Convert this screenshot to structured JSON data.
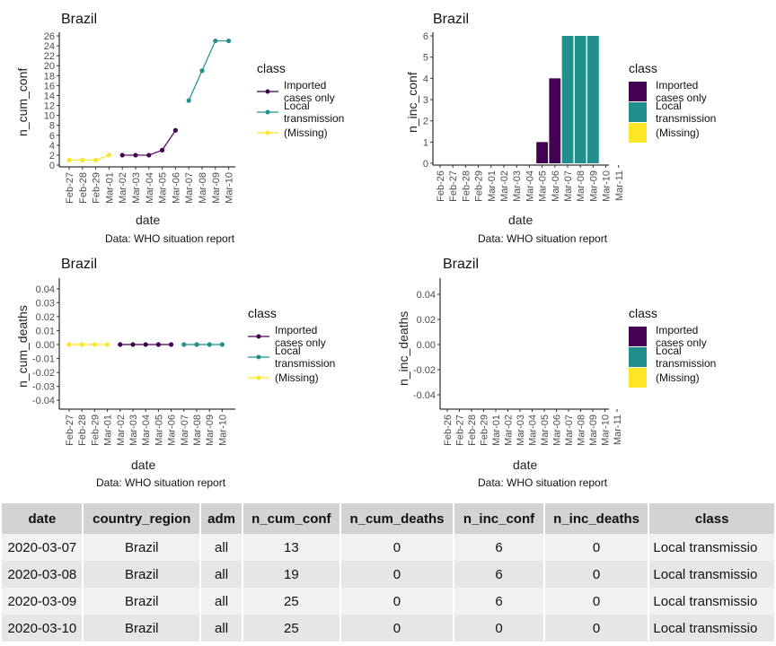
{
  "colors": {
    "imported": "#440154",
    "local": "#21908C",
    "missing": "#FDE725",
    "header_bg": "#d3d3d3"
  },
  "legend": {
    "title": "class",
    "items": [
      "Imported cases only",
      "Local transmission",
      "(Missing)"
    ]
  },
  "chart_data": [
    {
      "type": "line",
      "title": "Brazil",
      "xlabel": "date",
      "ylabel": "n_cum_conf",
      "caption": "Data: WHO situation report",
      "categories": [
        "Feb-27",
        "Feb-28",
        "Feb-29",
        "Mar-01",
        "Mar-02",
        "Mar-03",
        "Mar-04",
        "Mar-05",
        "Mar-06",
        "Mar-07",
        "Mar-08",
        "Mar-09",
        "Mar-10"
      ],
      "yticks": [
        0,
        2,
        4,
        6,
        8,
        10,
        12,
        14,
        16,
        18,
        20,
        22,
        24,
        26
      ],
      "ylim": [
        0,
        26
      ],
      "series": [
        {
          "name": "(Missing)",
          "x": [
            "Feb-27",
            "Feb-28",
            "Feb-29",
            "Mar-01"
          ],
          "values": [
            1,
            1,
            1,
            2
          ]
        },
        {
          "name": "Imported cases only",
          "x": [
            "Mar-02",
            "Mar-03",
            "Mar-04",
            "Mar-05",
            "Mar-06"
          ],
          "values": [
            2,
            2,
            2,
            3,
            7
          ]
        },
        {
          "name": "Local transmission",
          "x": [
            "Mar-07",
            "Mar-08",
            "Mar-09",
            "Mar-10"
          ],
          "values": [
            13,
            19,
            25,
            25
          ]
        }
      ],
      "legend_position": "right"
    },
    {
      "type": "bar",
      "title": "Brazil",
      "xlabel": "date",
      "ylabel": "n_inc_conf",
      "caption": "Data: WHO situation report",
      "categories": [
        "Feb-26",
        "Feb-27",
        "Feb-28",
        "Feb-29",
        "Mar-01",
        "Mar-02",
        "Mar-03",
        "Mar-04",
        "Mar-05",
        "Mar-06",
        "Mar-07",
        "Mar-08",
        "Mar-09",
        "Mar-10",
        "Mar-11"
      ],
      "yticks": [
        0,
        1,
        2,
        3,
        4,
        5,
        6
      ],
      "ylim": [
        0,
        6
      ],
      "series": [
        {
          "name": "Imported cases only",
          "x": [
            "Mar-05",
            "Mar-06"
          ],
          "values": [
            1,
            4
          ]
        },
        {
          "name": "Local transmission",
          "x": [
            "Mar-07",
            "Mar-08",
            "Mar-09"
          ],
          "values": [
            6,
            6,
            6
          ]
        }
      ],
      "legend_position": "right"
    },
    {
      "type": "line",
      "title": "Brazil",
      "xlabel": "date",
      "ylabel": "n_cum_deaths",
      "caption": "Data: WHO situation report",
      "categories": [
        "Feb-27",
        "Feb-28",
        "Feb-29",
        "Mar-01",
        "Mar-02",
        "Mar-03",
        "Mar-04",
        "Mar-05",
        "Mar-06",
        "Mar-07",
        "Mar-08",
        "Mar-09",
        "Mar-10"
      ],
      "yticks": [
        "0.04",
        "0.03",
        "0.02",
        "0.01",
        "0.00",
        "-0.01",
        "-0.02",
        "-0.03",
        "-0.04"
      ],
      "ylim": [
        -0.045,
        0.045
      ],
      "series": [
        {
          "name": "(Missing)",
          "x": [
            "Feb-27",
            "Feb-28",
            "Feb-29",
            "Mar-01"
          ],
          "values": [
            0,
            0,
            0,
            0
          ]
        },
        {
          "name": "Imported cases only",
          "x": [
            "Mar-02",
            "Mar-03",
            "Mar-04",
            "Mar-05",
            "Mar-06"
          ],
          "values": [
            0,
            0,
            0,
            0,
            0
          ]
        },
        {
          "name": "Local transmission",
          "x": [
            "Mar-07",
            "Mar-08",
            "Mar-09",
            "Mar-10"
          ],
          "values": [
            0,
            0,
            0,
            0
          ]
        }
      ],
      "legend_position": "right"
    },
    {
      "type": "bar",
      "title": "Brazil",
      "xlabel": "date",
      "ylabel": "n_inc_deaths",
      "caption": "Data: WHO situation report",
      "categories": [
        "Feb-26",
        "Feb-27",
        "Feb-28",
        "Feb-29",
        "Mar-01",
        "Mar-02",
        "Mar-03",
        "Mar-04",
        "Mar-05",
        "Mar-06",
        "Mar-07",
        "Mar-08",
        "Mar-09",
        "Mar-10",
        "Mar-11"
      ],
      "yticks": [
        "0.04",
        "0.02",
        "0.00",
        "-0.02",
        "-0.04"
      ],
      "ylim": [
        -0.05,
        0.05
      ],
      "series": [],
      "legend_position": "right"
    }
  ],
  "table": {
    "columns": [
      "date",
      "country_region",
      "adm",
      "n_cum_conf",
      "n_cum_deaths",
      "n_inc_conf",
      "n_inc_deaths",
      "class"
    ],
    "rows": [
      {
        "rownum": "7",
        "cells": [
          "2020-03-07",
          "Brazil",
          "all",
          "13",
          "0",
          "6",
          "0",
          "Local transmissio"
        ]
      },
      {
        "rownum": "2",
        "cells": [
          "2020-03-08",
          "Brazil",
          "all",
          "19",
          "0",
          "6",
          "0",
          "Local transmissio"
        ]
      },
      {
        "rownum": "3",
        "cells": [
          "2020-03-09",
          "Brazil",
          "all",
          "25",
          "0",
          "6",
          "0",
          "Local transmissio"
        ]
      },
      {
        "rownum": "4",
        "cells": [
          "2020-03-10",
          "Brazil",
          "all",
          "25",
          "0",
          "0",
          "0",
          "Local transmissio"
        ]
      }
    ]
  }
}
